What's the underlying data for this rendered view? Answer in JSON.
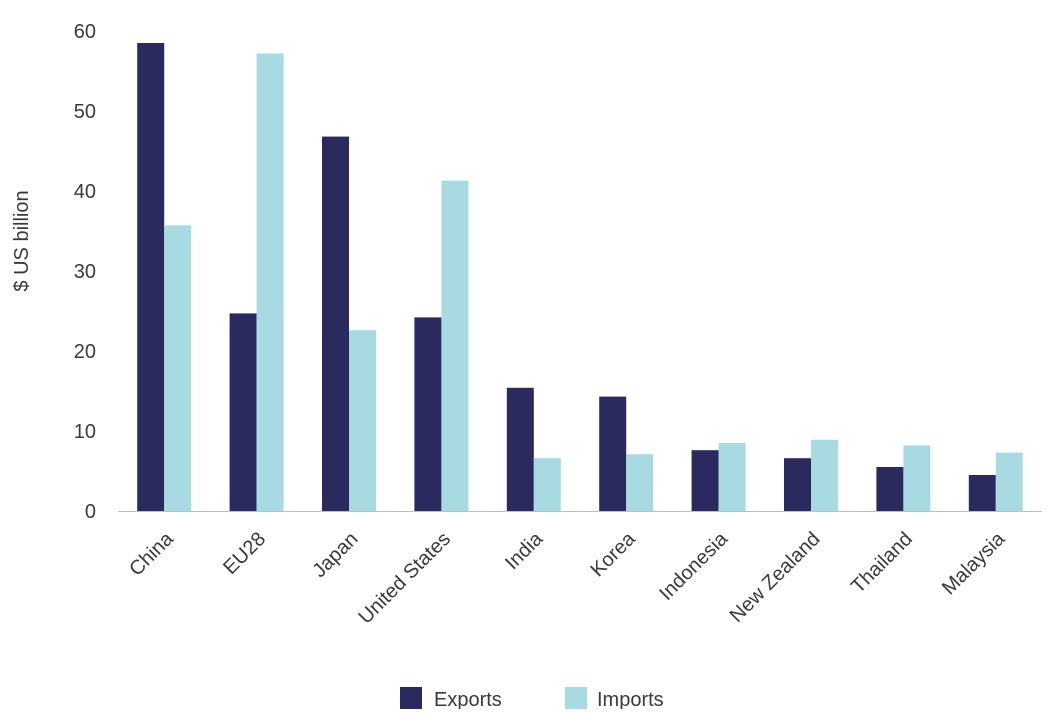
{
  "chart_data": {
    "type": "bar",
    "title": "",
    "xlabel": "",
    "ylabel": "$ US billion",
    "ylim": [
      0,
      60
    ],
    "yticks": [
      0,
      10,
      20,
      30,
      40,
      50,
      60
    ],
    "grid": false,
    "legend_position": "bottom-center",
    "categories": [
      "China",
      "EU28",
      "Japan",
      "United States",
      "India",
      "Korea",
      "Indonesia",
      "New Zealand",
      "Thailand",
      "Malaysia"
    ],
    "series": [
      {
        "name": "Exports",
        "color": "#2a2a5e",
        "values": [
          58.5,
          24.7,
          46.8,
          24.2,
          15.4,
          14.3,
          7.6,
          6.6,
          5.5,
          4.5
        ]
      },
      {
        "name": "Imports",
        "color": "#a8dbe1",
        "values": [
          35.7,
          57.2,
          22.6,
          41.3,
          6.6,
          7.1,
          8.5,
          8.9,
          8.2,
          7.3
        ]
      }
    ]
  }
}
